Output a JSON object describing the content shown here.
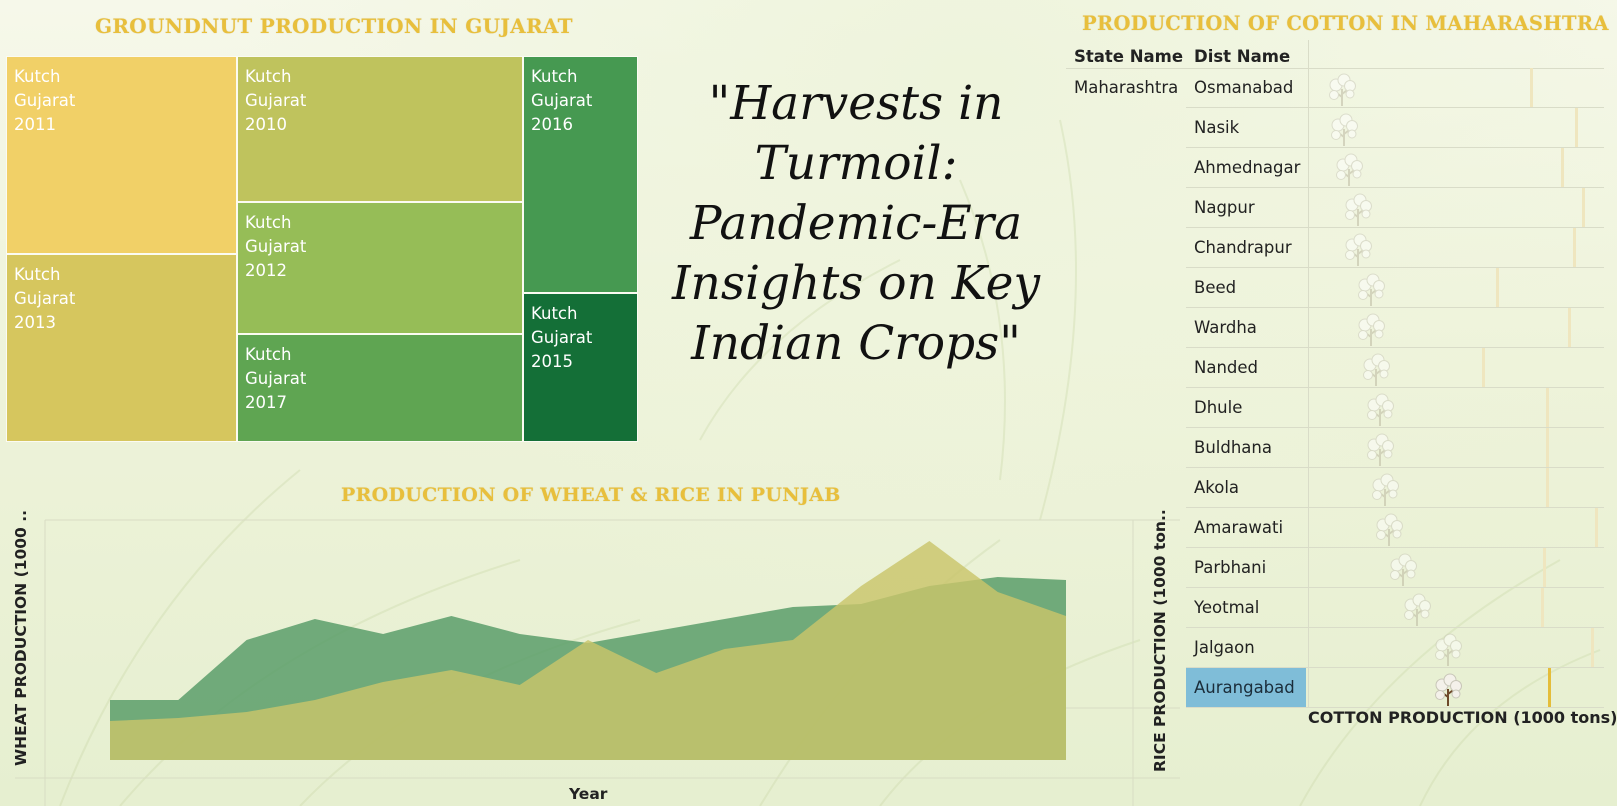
{
  "dashboard": {
    "title": "\"Harvests in Turmoil: Pandemic-Era Insights on Key Indian Crops\"",
    "title_lines": [
      "\"Harvests in",
      "Turmoil:",
      "Pandemic-Era",
      "Insights on Key",
      "Indian Crops\""
    ]
  },
  "groundnut": {
    "heading": "GROUNDNUT PRODUCTION IN GUJARAT",
    "tiles": [
      {
        "district": "Kutch",
        "state": "Gujarat",
        "year": "2011",
        "color": "#f1d067"
      },
      {
        "district": "Kutch",
        "state": "Gujarat",
        "year": "2013",
        "color": "#d6c65e"
      },
      {
        "district": "Kutch",
        "state": "Gujarat",
        "year": "2010",
        "color": "#bfc35d"
      },
      {
        "district": "Kutch",
        "state": "Gujarat",
        "year": "2012",
        "color": "#96bd57"
      },
      {
        "district": "Kutch",
        "state": "Gujarat",
        "year": "2017",
        "color": "#5fa552"
      },
      {
        "district": "Kutch",
        "state": "Gujarat",
        "year": "2016",
        "color": "#469951"
      },
      {
        "district": "Kutch",
        "state": "Gujarat",
        "year": "2015",
        "color": "#146f37"
      }
    ]
  },
  "punjab": {
    "heading": "PRODUCTION OF WHEAT & RICE IN PUNJAB",
    "xlabel": "Year",
    "ylabel_left": "WHEAT PRODUCTION (1000 ..",
    "ylabel_right": "RICE PRODUCTION (1000 ton.."
  },
  "cotton": {
    "heading": "PRODUCTION OF COTTON IN MAHARASHTRA",
    "state_header": "State Name",
    "dist_header": "Dist Name",
    "state": "Maharashtra",
    "xlabel": "COTTON PRODUCTION (1000 tons)",
    "selected": "Aurangabad"
  },
  "chart_data": [
    {
      "type": "treemap",
      "title": "GROUNDNUT PRODUCTION IN GUJARAT",
      "categories": [
        "Kutch Gujarat 2011",
        "Kutch Gujarat 2013",
        "Kutch Gujarat 2010",
        "Kutch Gujarat 2012",
        "Kutch Gujarat 2017",
        "Kutch Gujarat 2016",
        "Kutch Gujarat 2015"
      ],
      "values": [
        19.2,
        16.4,
        15.7,
        12.8,
        9.9,
        8.3,
        5.3
      ]
    },
    {
      "type": "area",
      "title": "PRODUCTION OF WHEAT & RICE IN PUNJAB",
      "xlabel": "Year",
      "ylabel": "WHEAT PRODUCTION (1000 ..",
      "y2label": "RICE PRODUCTION (1000 ton..",
      "x": [
        1,
        2,
        3,
        4,
        5,
        6,
        7,
        8,
        9,
        10,
        11,
        12,
        13,
        14,
        15
      ],
      "series": [
        {
          "values": [
            20,
            20,
            40,
            47,
            42,
            48,
            42,
            39,
            43,
            47,
            51,
            52,
            58,
            61,
            60
          ],
          "color": "#5a9e6a"
        },
        {
          "values": [
            13,
            14,
            16,
            20,
            26,
            30,
            25,
            40,
            29,
            37,
            40,
            58,
            73,
            56,
            48
          ],
          "color": "#c9c46a"
        }
      ],
      "ylim": [
        0,
        80
      ]
    },
    {
      "type": "bar",
      "title": "PRODUCTION OF COTTON IN MAHARASHTRA",
      "xlabel": "COTTON PRODUCTION (1000 tons)",
      "categories": [
        "Osmanabad",
        "Nasik",
        "Ahmednagar",
        "Nagpur",
        "Chandrapur",
        "Beed",
        "Wardha",
        "Nanded",
        "Dhule",
        "Buldhana",
        "Akola",
        "Amarawati",
        "Parbhani",
        "Yeotmal",
        "Jalgaon",
        "Aurangabad"
      ],
      "values": [
        15,
        16,
        18,
        22,
        22,
        28,
        28,
        30,
        32,
        32,
        34,
        36,
        42,
        48,
        62,
        62
      ],
      "reference": [
        98,
        118,
        112,
        121,
        117,
        83,
        115,
        77,
        105,
        105,
        105,
        127,
        104,
        103,
        125,
        106
      ]
    }
  ]
}
